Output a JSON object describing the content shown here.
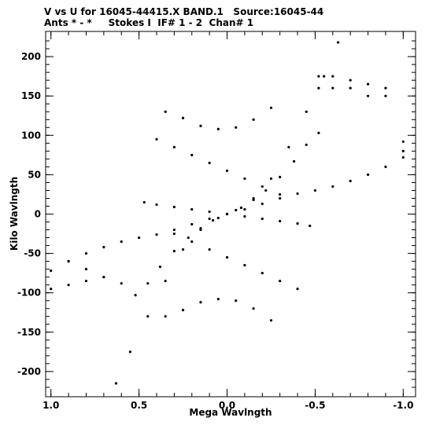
{
  "header": {
    "line1": "V vs U for 16045-44415.X BAND.1   Source:16045-44",
    "line2": "Ants * - *     Stokes I  IF# 1 - 2  Chan# 1"
  },
  "chart_data": {
    "type": "scatter",
    "xlabel": "Mega Wavlngth",
    "ylabel": "Kilo Wavlngth",
    "xlim": [
      1.03,
      -1.07
    ],
    "ylim": [
      -232,
      232
    ],
    "x_ticks": [
      1.0,
      0.5,
      0.0,
      -0.5,
      -1.0
    ],
    "x_tick_labels": [
      "1.0",
      "0.5",
      "0.0",
      "-0.5",
      "-1.0"
    ],
    "y_ticks": [
      200,
      150,
      100,
      50,
      0,
      -50,
      -100,
      -150,
      -200
    ],
    "y_tick_labels": [
      "200",
      "150",
      "100",
      "50",
      "0",
      "-50",
      "-100",
      "-150",
      "-200"
    ],
    "grid": false,
    "marker_color": "#000000",
    "series": [
      {
        "points": [
          [
            0.52,
            -103
          ],
          [
            0.45,
            -88
          ],
          [
            0.38,
            -67
          ],
          [
            0.3,
            -47
          ],
          [
            0.22,
            -30
          ],
          [
            0.15,
            -18
          ],
          [
            0.08,
            -8
          ],
          [
            0.0,
            0
          ],
          [
            -0.08,
            8
          ],
          [
            -0.15,
            18
          ],
          [
            -0.22,
            30
          ],
          [
            -0.3,
            47
          ],
          [
            -0.38,
            67
          ],
          [
            -0.45,
            88
          ],
          [
            -0.52,
            103
          ]
        ]
      },
      {
        "points": [
          [
            0.47,
            15
          ],
          [
            0.4,
            12
          ],
          [
            0.3,
            9
          ],
          [
            0.2,
            6
          ],
          [
            0.1,
            3
          ],
          [
            0.0,
            0
          ],
          [
            -0.1,
            -3
          ],
          [
            -0.2,
            -6
          ],
          [
            -0.3,
            -9
          ],
          [
            -0.4,
            -12
          ],
          [
            -0.47,
            -15
          ]
        ]
      },
      {
        "points": [
          [
            0.63,
            -215
          ],
          [
            0.55,
            -175
          ],
          [
            0.45,
            -130
          ],
          [
            0.35,
            -85
          ],
          [
            0.25,
            -45
          ],
          [
            0.15,
            -20
          ],
          [
            0.05,
            -5
          ],
          [
            -0.05,
            5
          ],
          [
            -0.15,
            20
          ],
          [
            -0.25,
            45
          ],
          [
            -0.35,
            85
          ],
          [
            -0.45,
            130
          ],
          [
            -0.55,
            175
          ],
          [
            -0.63,
            218
          ]
        ]
      },
      {
        "points": [
          [
            1.0,
            -72
          ],
          [
            0.9,
            -60
          ],
          [
            0.8,
            -50
          ],
          [
            0.7,
            -42
          ],
          [
            0.6,
            -35
          ],
          [
            0.5,
            -30
          ],
          [
            0.4,
            -26
          ],
          [
            0.3,
            -20
          ],
          [
            0.2,
            -13
          ],
          [
            0.1,
            -6
          ],
          [
            0.0,
            0
          ],
          [
            -0.1,
            6
          ],
          [
            -0.2,
            13
          ],
          [
            -0.3,
            20
          ],
          [
            -0.4,
            26
          ],
          [
            -0.5,
            30
          ],
          [
            -0.6,
            35
          ],
          [
            -0.7,
            42
          ],
          [
            -0.8,
            50
          ],
          [
            -0.9,
            60
          ],
          [
            -1.0,
            72
          ]
        ]
      },
      {
        "points": [
          [
            0.35,
            130
          ],
          [
            0.25,
            122
          ],
          [
            0.15,
            112
          ],
          [
            0.05,
            108
          ],
          [
            -0.05,
            110
          ],
          [
            -0.15,
            120
          ],
          [
            -0.25,
            135
          ]
        ]
      },
      {
        "points": [
          [
            0.35,
            -130
          ],
          [
            0.25,
            -122
          ],
          [
            0.15,
            -112
          ],
          [
            0.05,
            -108
          ],
          [
            -0.05,
            -110
          ],
          [
            -0.15,
            -120
          ],
          [
            -0.25,
            -135
          ]
        ]
      },
      {
        "points": [
          [
            -0.52,
            160
          ],
          [
            -0.52,
            175
          ],
          [
            -0.6,
            160
          ],
          [
            -0.6,
            175
          ],
          [
            -0.7,
            160
          ],
          [
            -0.7,
            170
          ],
          [
            -0.8,
            150
          ],
          [
            -0.8,
            165
          ],
          [
            -0.9,
            150
          ],
          [
            -0.9,
            160
          ],
          [
            -1.0,
            80
          ],
          [
            -1.0,
            92
          ]
        ]
      },
      {
        "points": [
          [
            0.6,
            -88
          ],
          [
            0.7,
            -80
          ],
          [
            0.8,
            -70
          ],
          [
            0.9,
            -60
          ],
          [
            1.0,
            -95
          ],
          [
            0.9,
            -90
          ],
          [
            0.8,
            -85
          ],
          [
            0.7,
            -80
          ]
        ]
      },
      {
        "points": [
          [
            0.4,
            95
          ],
          [
            0.3,
            85
          ],
          [
            0.2,
            75
          ],
          [
            0.1,
            65
          ],
          [
            0.0,
            55
          ],
          [
            -0.1,
            45
          ],
          [
            -0.2,
            35
          ],
          [
            -0.3,
            25
          ]
        ]
      },
      {
        "points": [
          [
            0.3,
            -25
          ],
          [
            0.2,
            -35
          ],
          [
            0.1,
            -45
          ],
          [
            0.0,
            -55
          ],
          [
            -0.1,
            -65
          ],
          [
            -0.2,
            -75
          ],
          [
            -0.3,
            -85
          ],
          [
            -0.4,
            -95
          ]
        ]
      }
    ]
  }
}
